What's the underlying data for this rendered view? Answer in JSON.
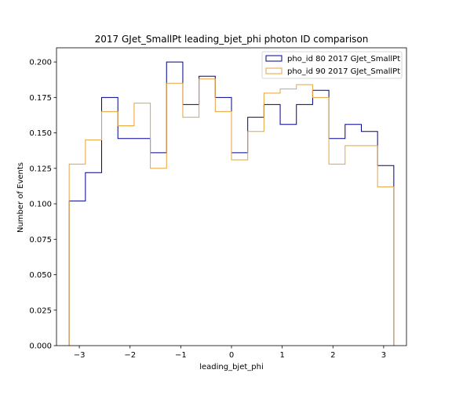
{
  "chart_data": {
    "type": "histogram-step",
    "title": "2017 GJet_SmallPt leading_bjet_phi photon ID comparison",
    "xlabel": "leading_bjet_phi",
    "ylabel": "Number of Events",
    "xlim": [
      -3.45,
      3.45
    ],
    "ylim": [
      0,
      0.21
    ],
    "xticks": [
      -3,
      -2,
      -1,
      0,
      1,
      2,
      3
    ],
    "yticks": [
      0.0,
      0.025,
      0.05,
      0.075,
      0.1,
      0.125,
      0.15,
      0.175,
      0.2
    ],
    "ytick_labels": [
      "0.000",
      "0.025",
      "0.050",
      "0.075",
      "0.100",
      "0.125",
      "0.150",
      "0.175",
      "0.200"
    ],
    "bin_edges": [
      -3.2,
      -2.88,
      -2.56,
      -2.24,
      -1.92,
      -1.6,
      -1.28,
      -0.96,
      -0.64,
      -0.32,
      0.0,
      0.32,
      0.64,
      0.96,
      1.28,
      1.6,
      1.92,
      2.24,
      2.56,
      2.88,
      3.2
    ],
    "legend_position": "upper right",
    "grid": false,
    "series": [
      {
        "name": "pho_id 80 2017 GJet_SmallPt",
        "color": "#00008b",
        "values": [
          0.102,
          0.122,
          0.175,
          0.146,
          0.146,
          0.136,
          0.2,
          0.17,
          0.19,
          0.175,
          0.136,
          0.161,
          0.17,
          0.156,
          0.17,
          0.18,
          0.146,
          0.156,
          0.151,
          0.127
        ]
      },
      {
        "name": "pho_id 90 2017 GJet_SmallPt",
        "color": "#e8a33a",
        "values": [
          0.128,
          0.145,
          0.165,
          0.155,
          0.171,
          0.125,
          0.185,
          0.161,
          0.188,
          0.165,
          0.131,
          0.151,
          0.178,
          0.181,
          0.184,
          0.175,
          0.128,
          0.141,
          0.141,
          0.112
        ]
      }
    ]
  }
}
